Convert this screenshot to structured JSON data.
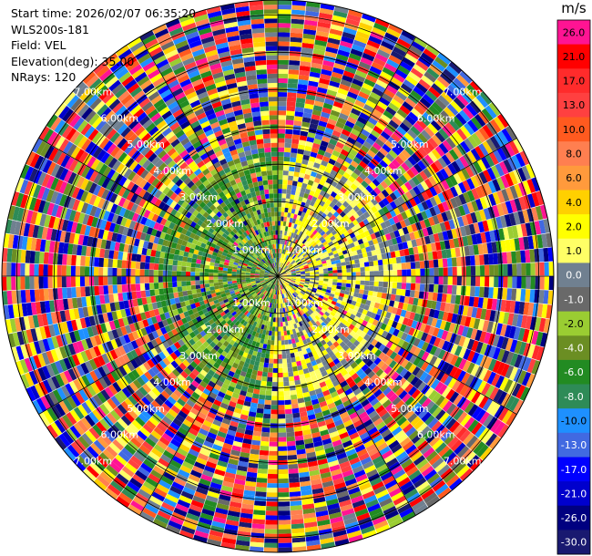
{
  "header": {
    "start_time": "Start time: 2026/02/07 06:35:20",
    "instrument": "WLS200s-181",
    "field": "Field: VEL",
    "elevation": "Elevation(deg): 35.00",
    "nrays": "NRays: 120"
  },
  "chart_data": {
    "type": "heatmap",
    "projection": "polar-ppi",
    "field": "VEL",
    "units": "m/s",
    "n_rays": 120,
    "elevation_deg": 35.0,
    "range_rings": {
      "values_km": [
        1,
        2,
        3,
        4,
        5,
        6,
        7
      ],
      "labels": [
        "1.00km",
        "2.00km",
        "3.00km",
        "4.00km",
        "5.00km",
        "6.00km",
        "7.00km"
      ]
    },
    "colorbar": {
      "unit_label": "m/s",
      "bins": [
        {
          "label": "26.0",
          "color": "#ff1493"
        },
        {
          "label": "21.0",
          "color": "#ff0000"
        },
        {
          "label": "17.0",
          "color": "#ff2b2b"
        },
        {
          "label": "13.0",
          "color": "#ff4040"
        },
        {
          "label": "10.0",
          "color": "#ff5a1f"
        },
        {
          "label": "8.0",
          "color": "#ff7f50"
        },
        {
          "label": "6.0",
          "color": "#ff9a3c"
        },
        {
          "label": "4.0",
          "color": "#ffd000"
        },
        {
          "label": "2.0",
          "color": "#ffff00"
        },
        {
          "label": "1.0",
          "color": "#ffff66"
        },
        {
          "label": "0.0",
          "color": "#708090"
        },
        {
          "label": "-1.0",
          "color": "#696969"
        },
        {
          "label": "-2.0",
          "color": "#9acd32"
        },
        {
          "label": "-4.0",
          "color": "#6b8e23"
        },
        {
          "label": "-6.0",
          "color": "#228b22"
        },
        {
          "label": "-8.0",
          "color": "#2e8b57"
        },
        {
          "label": "-10.0",
          "color": "#1e90ff"
        },
        {
          "label": "-13.0",
          "color": "#4169e1"
        },
        {
          "label": "-17.0",
          "color": "#0000ff"
        },
        {
          "label": "-21.0",
          "color": "#0000cd"
        },
        {
          "label": "-26.0",
          "color": "#000080"
        },
        {
          "label": "-30.0",
          "color": "#191970"
        }
      ]
    }
  }
}
